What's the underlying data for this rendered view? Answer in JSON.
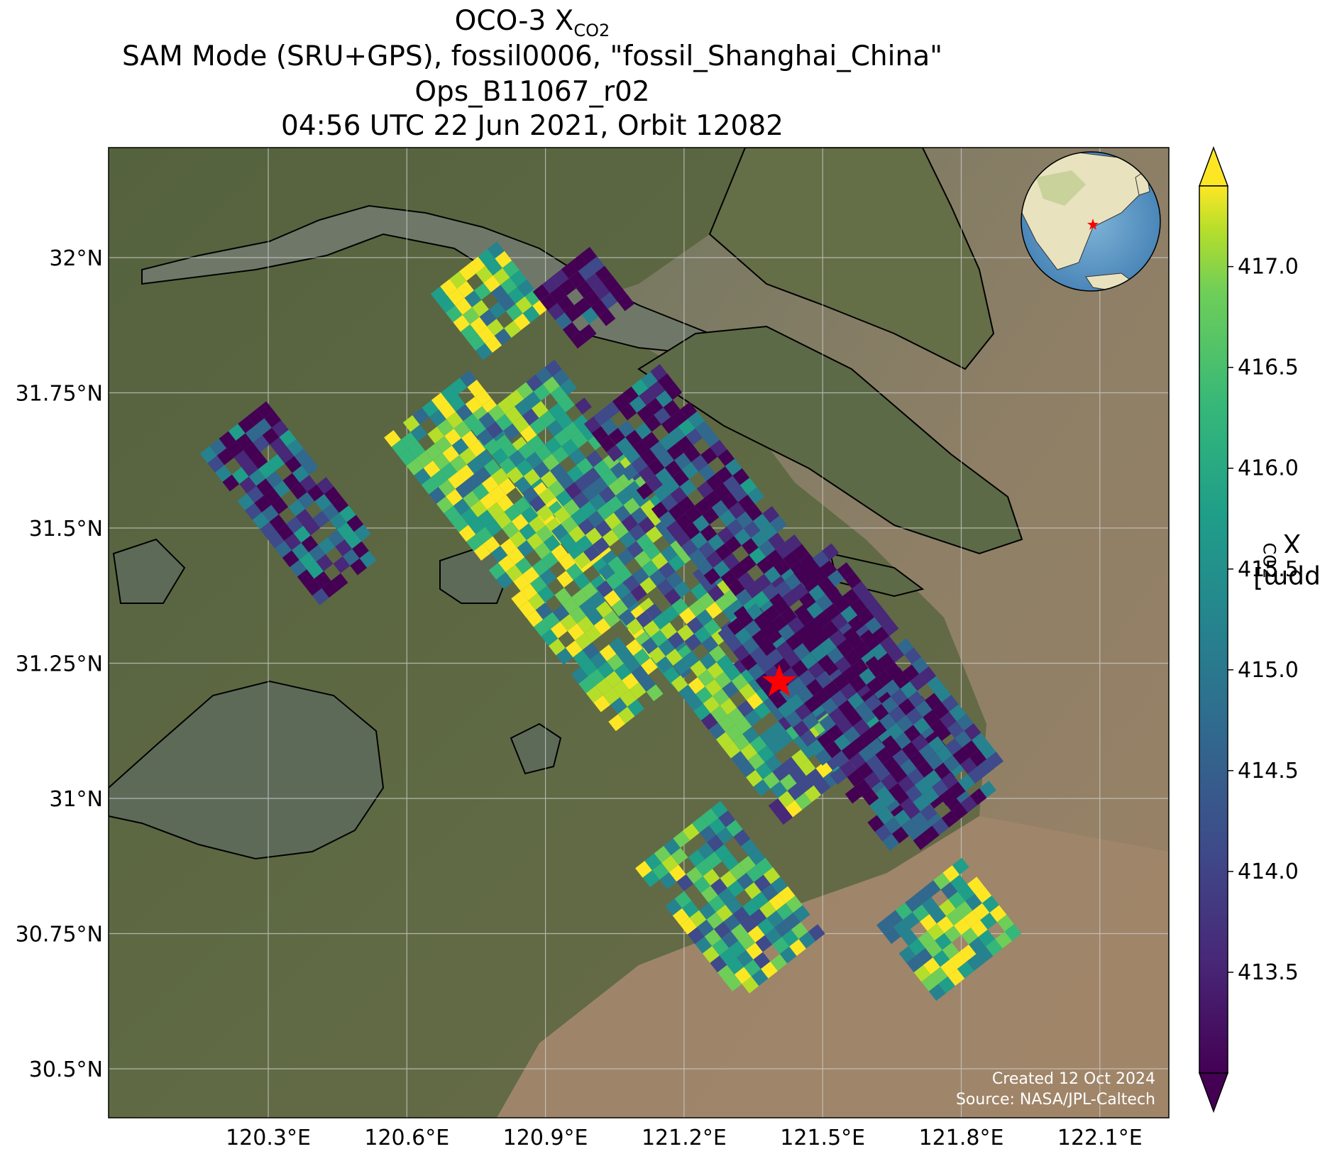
{
  "title": {
    "line1_prefix": "OCO-3 X",
    "line1_sub": "CO2",
    "line2": "SAM Mode (SRU+GPS), fossil0006, \"fossil_Shanghai_China\"",
    "line3": "Ops_B11067_r02",
    "line4": "04:56 UTC 22 Jun 2021, Orbit 12082"
  },
  "map": {
    "lon_ticks": [
      "120.3°E",
      "120.6°E",
      "120.9°E",
      "121.2°E",
      "121.5°E",
      "121.8°E",
      "122.1°E"
    ],
    "lat_ticks": [
      "32°N",
      "31.75°N",
      "31.5°N",
      "31.25°N",
      "31°N",
      "30.75°N",
      "30.5°N"
    ],
    "target_marker": {
      "lon": 121.45,
      "lat": 31.225,
      "icon": "red-star-icon",
      "color": "#ff0000"
    },
    "inset": "globe-locator-icon",
    "watermark": [
      "Created 12 Oct 2024",
      "Source: NASA/JPL-Caltech"
    ]
  },
  "colorbar": {
    "label_prefix": "X",
    "label_sub": "CO2",
    "label_suffix": " [ppm]",
    "ticks": [
      "417.0",
      "416.5",
      "416.0",
      "415.5",
      "415.0",
      "414.5",
      "414.0",
      "413.5"
    ],
    "tick_values": [
      417.0,
      416.5,
      416.0,
      415.5,
      415.0,
      414.5,
      414.0,
      413.5
    ],
    "range": [
      413.0,
      417.4
    ],
    "colormap": "viridis",
    "extend": "both"
  }
}
